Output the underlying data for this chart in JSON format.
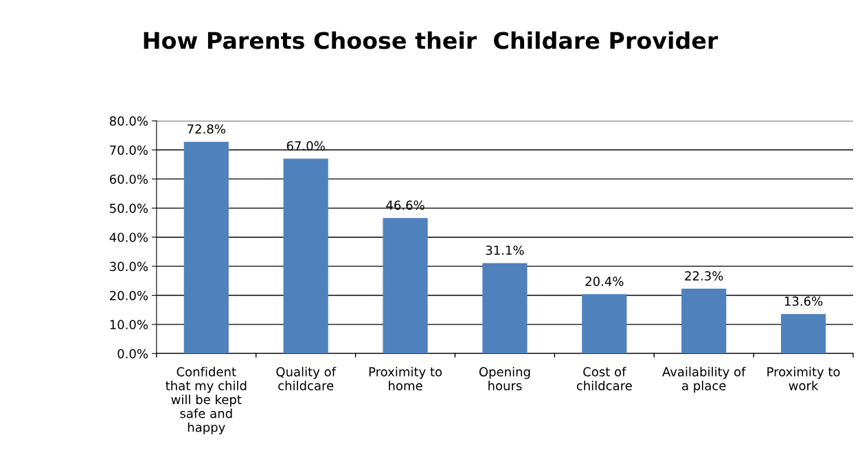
{
  "chart_data": {
    "type": "bar",
    "title": "How Parents Choose their  Childare Provider",
    "categories": [
      "Confident\nthat my child\nwill be kept\nsafe and\nhappy",
      "Quality of\nchildcare",
      "Proximity to\nhome",
      "Opening\nhours",
      "Cost of\nchildcare",
      "Availability of\na place",
      "Proximity to\nwork"
    ],
    "values": [
      72.8,
      67.0,
      46.6,
      31.1,
      20.4,
      22.3,
      13.6
    ],
    "value_labels": [
      "72.8%",
      "67.0%",
      "46.6%",
      "31.1%",
      "20.4%",
      "22.3%",
      "13.6%"
    ],
    "color": "#4f81bd",
    "ylim": [
      0,
      80
    ],
    "yticks": [
      {
        "value": 0,
        "label": "0.0%"
      },
      {
        "value": 10,
        "label": "10.0%"
      },
      {
        "value": 20,
        "label": "20.0%"
      },
      {
        "value": 30,
        "label": "30.0%"
      },
      {
        "value": 40,
        "label": "40.0%"
      },
      {
        "value": 50,
        "label": "50.0%"
      },
      {
        "value": 60,
        "label": "60.0%"
      },
      {
        "value": 70,
        "label": "70.0%"
      },
      {
        "value": 80,
        "label": "80.0%"
      }
    ],
    "grid": "y"
  }
}
